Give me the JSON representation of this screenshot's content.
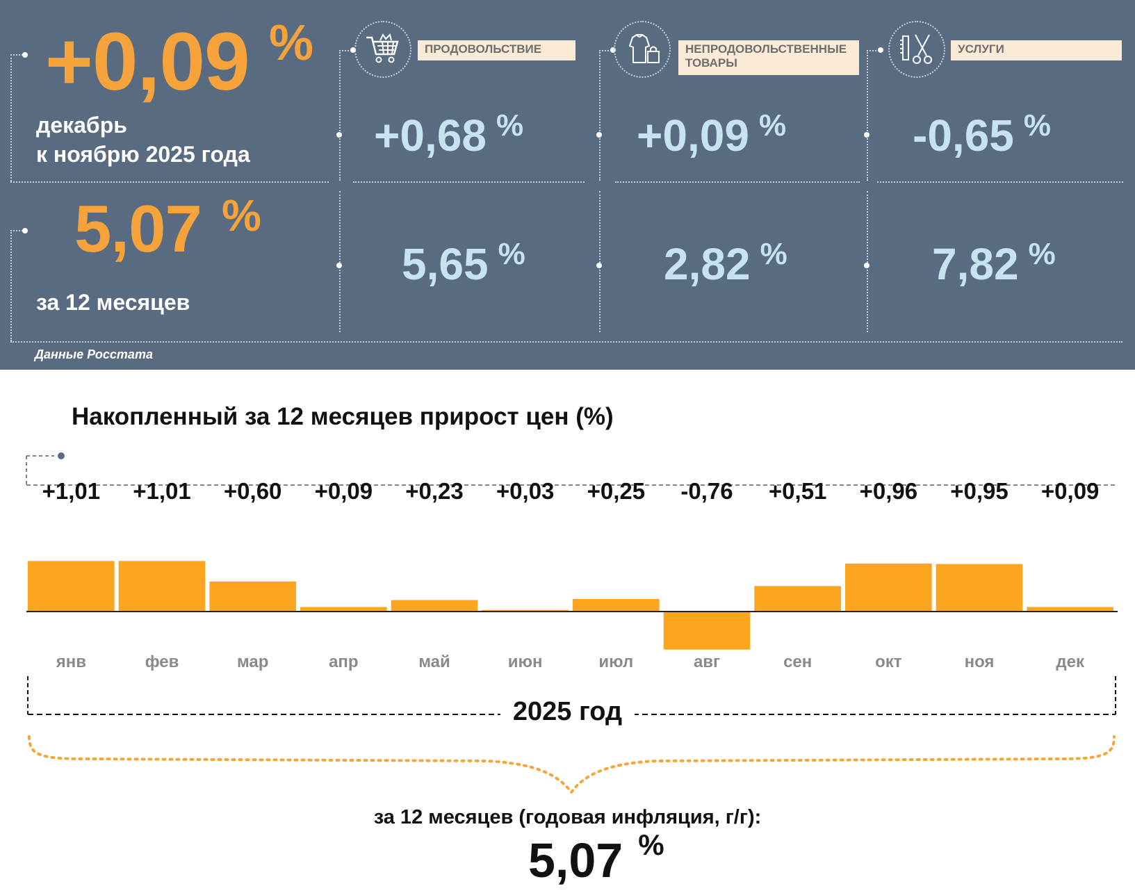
{
  "headline": {
    "monthly_value": "+0,09",
    "monthly_unit": "%",
    "monthly_caption_line1": "декабрь",
    "monthly_caption_line2": "к ноябрю 2025 года",
    "annual_value": "5,07",
    "annual_unit": "%",
    "annual_caption": "за 12 месяцев"
  },
  "categories": [
    {
      "label": "ПРОДОВОЛЬСТВИЕ",
      "icon": "shopping-cart-icon",
      "monthly": "+0,68",
      "annual": "5,65",
      "unit": "%"
    },
    {
      "label": "НЕПРОДОВОЛЬСТВЕННЫЕ ТОВАРЫ",
      "icon": "clothing-bag-icon",
      "monthly": "+0,09",
      "annual": "2,82",
      "unit": "%"
    },
    {
      "label": "УСЛУГИ",
      "icon": "scissors-comb-icon",
      "monthly": "-0,65",
      "annual": "7,82",
      "unit": "%"
    }
  ],
  "source": "Данные Росстата",
  "colors": {
    "panel": "#596b80",
    "accent_orange": "#f7a33b",
    "value_blue": "#c6e3f2",
    "bar": "#fba61e",
    "label_bg": "#fbebd6"
  },
  "chart_data": {
    "type": "bar",
    "title": "Накопленный за 12 месяцев прирост цен (%)",
    "categories": [
      "янв",
      "фев",
      "мар",
      "апр",
      "май",
      "июн",
      "июл",
      "авг",
      "сен",
      "окт",
      "ноя",
      "дек"
    ],
    "values": [
      1.01,
      1.01,
      0.6,
      0.09,
      0.23,
      0.03,
      0.25,
      -0.76,
      0.51,
      0.96,
      0.95,
      0.09
    ],
    "value_labels": [
      "+1,01",
      "+1,01",
      "+0,60",
      "+0,09",
      "+0,23",
      "+0,03",
      "+0,25",
      "-0,76",
      "+0,51",
      "+0,96",
      "+0,95",
      "+0,09"
    ],
    "xlabel": "2025 год",
    "ylabel": "",
    "ylim": [
      -0.76,
      1.01
    ],
    "grid": false,
    "legend": "none",
    "annual_caption": "за 12 месяцев (годовая инфляция, г/г):",
    "annual_value": "5,07",
    "annual_unit": "%"
  }
}
